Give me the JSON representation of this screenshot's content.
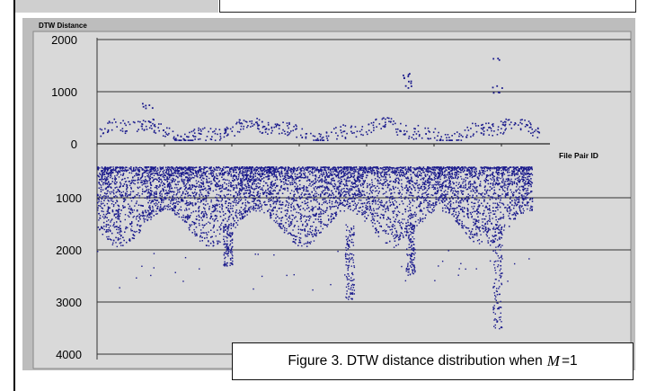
{
  "chart_data": {
    "type": "scatter",
    "ylabel": "DTW Distance",
    "xlabel": "File Pair ID",
    "yticks_upper": [
      "2000",
      "1000",
      "0"
    ],
    "yticks_lower": [
      "1000",
      "2000",
      "3000",
      "4000"
    ],
    "upper_ylim": [
      0,
      2000
    ],
    "lower_ylim": [
      0,
      4000
    ],
    "grid": "horizontal",
    "series": [
      {
        "description": "upper",
        "band_min": 80,
        "band_max": 700,
        "spikes": [
          {
            "x_frac": 0.115,
            "values": [
              700,
              770
            ]
          },
          {
            "x_frac": 0.71,
            "values": [
              1100,
              1200,
              1300,
              1350
            ]
          },
          {
            "x_frac": 0.92,
            "values": [
              1000,
              1100,
              1650
            ]
          }
        ]
      },
      {
        "description": "lower",
        "band_min": 400,
        "band_max": 1800,
        "dips": [
          {
            "x_frac": 0.3,
            "min": 2300
          },
          {
            "x_frac": 0.58,
            "min": 2950
          },
          {
            "x_frac": 0.72,
            "min": 2500
          },
          {
            "x_frac": 0.92,
            "min": 3500
          }
        ]
      }
    ]
  },
  "caption": {
    "prefix": "Figure 3. DTW distance distribution when",
    "var": "M",
    "suffix": "=1"
  }
}
